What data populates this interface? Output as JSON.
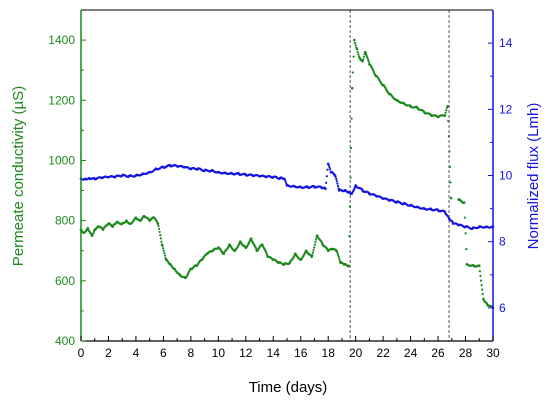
{
  "chart_data": {
    "type": "scatter",
    "title": "",
    "xlabel": "Time (days)",
    "ylabel_left": "Permeate conductivity (µS)",
    "ylabel_right": "Normalized flux (Lmh)",
    "xlim": [
      0,
      30
    ],
    "ylim_left": [
      400,
      1500
    ],
    "ylim_right": [
      5,
      15
    ],
    "x_ticks": [
      0,
      2,
      4,
      6,
      8,
      10,
      12,
      14,
      16,
      18,
      20,
      22,
      24,
      26,
      28,
      30
    ],
    "y_left_ticks": [
      400,
      600,
      800,
      1000,
      1200,
      1400
    ],
    "y_right_ticks": [
      6,
      8,
      10,
      12,
      14
    ],
    "grid": false,
    "legend": "none",
    "vlines": [
      19.6,
      26.8
    ],
    "colors": {
      "left_series": "#1a8a1a",
      "right_series": "#1414e6",
      "vline": "#555555",
      "axis": "#000000"
    },
    "series": [
      {
        "axis": "left",
        "points": [
          [
            0,
            770
          ],
          [
            0.2,
            760
          ],
          [
            0.5,
            775
          ],
          [
            0.8,
            750
          ],
          [
            1,
            770
          ],
          [
            1.3,
            780
          ],
          [
            1.6,
            770
          ],
          [
            2,
            790
          ],
          [
            2.3,
            780
          ],
          [
            2.6,
            795
          ],
          [
            3,
            790
          ],
          [
            3.3,
            800
          ],
          [
            3.6,
            790
          ],
          [
            4,
            810
          ],
          [
            4.3,
            800
          ],
          [
            4.6,
            815
          ],
          [
            5,
            800
          ],
          [
            5.3,
            810
          ],
          [
            5.6,
            790
          ],
          [
            5.9,
            720
          ],
          [
            6.2,
            670
          ],
          [
            6.5,
            655
          ],
          [
            6.8,
            640
          ],
          [
            7.2,
            620
          ],
          [
            7.6,
            610
          ],
          [
            8,
            640
          ],
          [
            8.4,
            650
          ],
          [
            8.8,
            670
          ],
          [
            9.2,
            690
          ],
          [
            9.6,
            700
          ],
          [
            10,
            710
          ],
          [
            10.4,
            690
          ],
          [
            10.8,
            720
          ],
          [
            11.2,
            700
          ],
          [
            11.6,
            730
          ],
          [
            12,
            710
          ],
          [
            12.4,
            740
          ],
          [
            12.8,
            700
          ],
          [
            13.2,
            720
          ],
          [
            13.6,
            680
          ],
          [
            14,
            670
          ],
          [
            14.4,
            660
          ],
          [
            14.8,
            655
          ],
          [
            15.2,
            660
          ],
          [
            15.6,
            690
          ],
          [
            16,
            670
          ],
          [
            16.4,
            700
          ],
          [
            16.8,
            680
          ],
          [
            17.2,
            750
          ],
          [
            17.6,
            720
          ],
          [
            18,
            700
          ],
          [
            18.3,
            705
          ],
          [
            18.6,
            700
          ],
          [
            18.9,
            660
          ],
          [
            19.2,
            655
          ],
          [
            19.5,
            650
          ],
          [
            19.75,
            1240
          ],
          [
            19.9,
            1400
          ],
          [
            20.1,
            1370
          ],
          [
            20.3,
            1340
          ],
          [
            20.5,
            1330
          ],
          [
            20.7,
            1360
          ],
          [
            21,
            1320
          ],
          [
            21.5,
            1280
          ],
          [
            22,
            1250
          ],
          [
            22.5,
            1220
          ],
          [
            23,
            1200
          ],
          [
            23.5,
            1190
          ],
          [
            24,
            1180
          ],
          [
            24.5,
            1175
          ],
          [
            25,
            1160
          ],
          [
            25.5,
            1150
          ],
          [
            26,
            1145
          ],
          [
            26.5,
            1150
          ],
          [
            26.7,
            1180
          ],
          [
            26.95,
            875
          ],
          [
            27.5,
            870
          ],
          [
            27.9,
            860
          ],
          [
            28.1,
            655
          ],
          [
            28.6,
            650
          ],
          [
            29,
            650
          ],
          [
            29.3,
            540
          ],
          [
            29.6,
            520
          ],
          [
            30,
            510
          ]
        ]
      },
      {
        "axis": "right",
        "points": [
          [
            0,
            9.9
          ],
          [
            0.3,
            9.9
          ],
          [
            0.6,
            9.92
          ],
          [
            1,
            9.9
          ],
          [
            1.5,
            9.93
          ],
          [
            2,
            9.95
          ],
          [
            2.5,
            9.96
          ],
          [
            3,
            10.0
          ],
          [
            3.5,
            9.98
          ],
          [
            4,
            10.0
          ],
          [
            4.5,
            10.05
          ],
          [
            5,
            10.1
          ],
          [
            5.5,
            10.2
          ],
          [
            6,
            10.25
          ],
          [
            6.5,
            10.3
          ],
          [
            7,
            10.28
          ],
          [
            7.5,
            10.25
          ],
          [
            8,
            10.2
          ],
          [
            8.5,
            10.2
          ],
          [
            9,
            10.15
          ],
          [
            9.5,
            10.15
          ],
          [
            10,
            10.1
          ],
          [
            10.5,
            10.08
          ],
          [
            11,
            10.06
          ],
          [
            11.5,
            10.05
          ],
          [
            12,
            10.02
          ],
          [
            12.5,
            10.0
          ],
          [
            13,
            9.98
          ],
          [
            13.5,
            9.96
          ],
          [
            14,
            9.95
          ],
          [
            14.5,
            9.92
          ],
          [
            14.8,
            9.9
          ],
          [
            15,
            9.7
          ],
          [
            15.5,
            9.68
          ],
          [
            16,
            9.65
          ],
          [
            16.5,
            9.65
          ],
          [
            17,
            9.66
          ],
          [
            17.5,
            9.64
          ],
          [
            17.8,
            9.6
          ],
          [
            18,
            10.35
          ],
          [
            18.2,
            10.1
          ],
          [
            18.5,
            10.0
          ],
          [
            18.8,
            9.55
          ],
          [
            19.2,
            9.55
          ],
          [
            19.5,
            9.5
          ],
          [
            19.7,
            9.45
          ],
          [
            20,
            9.7
          ],
          [
            20.5,
            9.55
          ],
          [
            21,
            9.45
          ],
          [
            21.5,
            9.38
          ],
          [
            22,
            9.3
          ],
          [
            22.5,
            9.25
          ],
          [
            23,
            9.2
          ],
          [
            23.5,
            9.15
          ],
          [
            24,
            9.1
          ],
          [
            24.5,
            9.05
          ],
          [
            25,
            9.0
          ],
          [
            25.5,
            8.98
          ],
          [
            26,
            8.95
          ],
          [
            26.5,
            8.9
          ],
          [
            26.8,
            8.7
          ],
          [
            27.1,
            8.55
          ],
          [
            27.5,
            8.5
          ],
          [
            28,
            8.45
          ],
          [
            28.5,
            8.4
          ],
          [
            29,
            8.45
          ],
          [
            29.5,
            8.45
          ],
          [
            30,
            8.45
          ]
        ]
      }
    ]
  }
}
